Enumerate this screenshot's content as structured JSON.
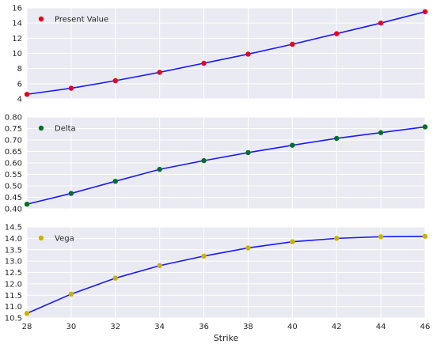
{
  "chart_data": [
    {
      "type": "line",
      "x": [
        28,
        30,
        32,
        34,
        36,
        38,
        40,
        42,
        44,
        46
      ],
      "series": [
        {
          "name": "Present Value",
          "values": [
            4.6,
            5.4,
            6.4,
            7.5,
            8.7,
            9.9,
            11.2,
            12.6,
            14.0,
            15.5
          ],
          "marker_color": "#e8001c",
          "line_color": "#1a1aff"
        }
      ],
      "xlim": [
        28,
        46
      ],
      "ylim": [
        4,
        16
      ],
      "yticks": [
        4,
        6,
        8,
        10,
        12,
        14,
        16
      ],
      "ytick_labels": [
        "4",
        "6",
        "8",
        "10",
        "12",
        "14",
        "16"
      ],
      "show_xticks": false,
      "legend": "top-left",
      "grid": true
    },
    {
      "type": "line",
      "x": [
        28,
        30,
        32,
        34,
        36,
        38,
        40,
        42,
        44,
        46
      ],
      "series": [
        {
          "name": "Delta",
          "values": [
            0.42,
            0.467,
            0.52,
            0.572,
            0.61,
            0.645,
            0.677,
            0.707,
            0.732,
            0.757
          ],
          "marker_color": "#006f2c",
          "line_color": "#1a1aff"
        }
      ],
      "xlim": [
        28,
        46
      ],
      "ylim": [
        0.4,
        0.8
      ],
      "yticks": [
        0.4,
        0.45,
        0.5,
        0.55,
        0.6,
        0.65,
        0.7,
        0.75,
        0.8
      ],
      "ytick_labels": [
        "0.40",
        "0.45",
        "0.50",
        "0.55",
        "0.60",
        "0.65",
        "0.70",
        "0.75",
        "0.80"
      ],
      "show_xticks": false,
      "legend": "top-left",
      "grid": true
    },
    {
      "type": "line",
      "x": [
        28,
        30,
        32,
        34,
        36,
        38,
        40,
        42,
        44,
        46
      ],
      "series": [
        {
          "name": "Vega",
          "values": [
            10.7,
            11.55,
            12.25,
            12.8,
            13.22,
            13.58,
            13.85,
            14.0,
            14.07,
            14.09
          ],
          "marker_color": "#c8b400",
          "line_color": "#1a1aff"
        }
      ],
      "xlim": [
        28,
        46
      ],
      "ylim": [
        10.5,
        14.5
      ],
      "yticks": [
        10.5,
        11.0,
        11.5,
        12.0,
        12.5,
        13.0,
        13.5,
        14.0,
        14.5
      ],
      "ytick_labels": [
        "10.5",
        "11.0",
        "11.5",
        "12.0",
        "12.5",
        "13.0",
        "13.5",
        "14.0",
        "14.5"
      ],
      "xticks": [
        28,
        30,
        32,
        34,
        36,
        38,
        40,
        42,
        44,
        46
      ],
      "xtick_labels": [
        "28",
        "30",
        "32",
        "34",
        "36",
        "38",
        "40",
        "42",
        "44",
        "46"
      ],
      "show_xticks": true,
      "xlabel": "Strike",
      "legend": "top-left",
      "grid": true
    }
  ]
}
